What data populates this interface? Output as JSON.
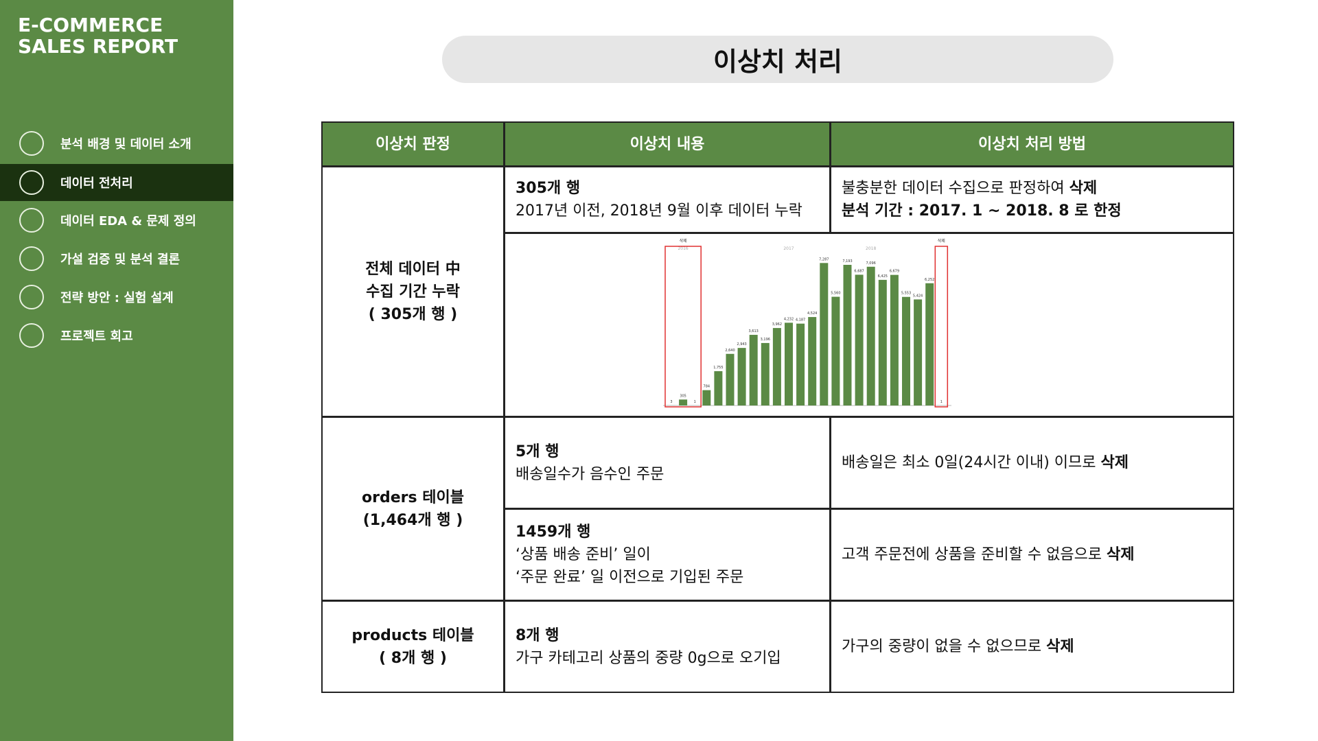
{
  "sidebar": {
    "title_lines": [
      "E-COMMERCE",
      "SALES REPORT"
    ],
    "menu": [
      "분석 배경 및 데이터 소개",
      "데이터 전처리",
      "데이터 EDA & 문제 정의",
      "가설 검증 및 분석 결론",
      "전략 방안 : 실험 설계",
      "프로젝트 회고"
    ],
    "active": 1
  },
  "header": {
    "title": "이상치 처리"
  },
  "table": {
    "headers": [
      "이상치 판정",
      "이상치 내용",
      "이상치 처리 방법"
    ],
    "sections": [
      {
        "judgement": [
          "전체 데이터 中",
          "수집 기간 누락",
          "( 305개 행 )"
        ],
        "items": [
          {
            "content_title": "305개 행",
            "content_lines": [
              "2017년 이전, 2018년 9월 이후 데이터 누락"
            ],
            "method": [
              [
                {
                  "text": "불충분한 데이터 수집으로 판정하여 "
                },
                {
                  "text": "삭제",
                  "bold": true
                }
              ],
              [
                {
                  "text": "분석 기간 : 2017. 1 ~ 2018. 8 로 한정",
                  "bold": true
                }
              ]
            ]
          }
        ]
      },
      {
        "judgement": [
          "orders 테이블",
          "(1,464개 행 )"
        ],
        "items": [
          {
            "content_title": "5개 행",
            "content_lines": [
              "배송일수가 음수인 주문"
            ],
            "method": [
              [
                {
                  "text": "배송일은 최소 0일(24시간 이내) 이므로 "
                },
                {
                  "text": "삭제",
                  "bold": true
                }
              ]
            ]
          },
          {
            "content_title": "1459개 행",
            "content_lines": [
              "‘상품 배송 준비’ 일이",
              "‘주문 완료’ 일 이전으로 기입된 주문"
            ],
            "method": [
              [
                {
                  "text": "고객 주문전에 상품을 준비할 수 없음으로 "
                },
                {
                  "text": "삭제",
                  "bold": true
                }
              ]
            ]
          }
        ]
      },
      {
        "judgement": [
          "products 테이블",
          "( 8개 행 )"
        ],
        "items": [
          {
            "content_title": "8개 행",
            "content_lines": [
              "가구 카테고리 상품의 중량 0g으로 오기입"
            ],
            "method": [
              [
                {
                  "text": "가구의 중량이 없을 수 없으므로 "
                },
                {
                  "text": "삭제",
                  "bold": true
                }
              ]
            ]
          }
        ]
      }
    ]
  },
  "chart_data": {
    "type": "bar",
    "color": "#5b8a45",
    "highlight_color": "#e03030",
    "ylim": [
      0,
      8000
    ],
    "year_labels": [
      "2016",
      "2017",
      "2018"
    ],
    "delete_label": "삭제",
    "values": [
      3,
      305,
      1,
      784,
      1755,
      2640,
      2943,
      3613,
      3196,
      3962,
      4232,
      4187,
      4524,
      7287,
      5560,
      7193,
      6687,
      7096,
      6425,
      6679,
      5553,
      5424,
      6252,
      1
    ],
    "value_labels": [
      "3",
      "305",
      "1",
      "784",
      "1,755",
      "2,640",
      "2,943",
      "3,613",
      "3,196",
      "3,962",
      "4,232",
      "4,187",
      "4,524",
      "7,287",
      "5,560",
      "7,193",
      "6,687",
      "7,096",
      "6,425",
      "6,679",
      "5,553",
      "5,424",
      "6,252",
      "1"
    ]
  }
}
